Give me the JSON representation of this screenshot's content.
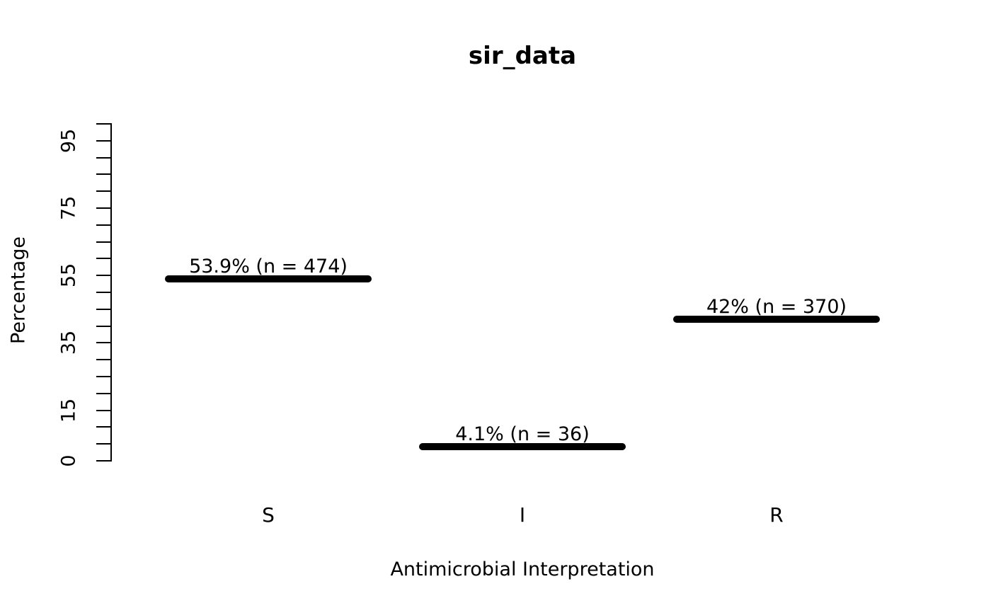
{
  "page": {
    "background": "#ffffff",
    "text_color": "#000000"
  },
  "chart_data": {
    "type": "bar",
    "title": "sir_data",
    "xlabel": "Antimicrobial Interpretation",
    "ylabel": "Percentage",
    "categories": [
      "S",
      "I",
      "R"
    ],
    "values": [
      53.9,
      4.1,
      42
    ],
    "counts": [
      474,
      36,
      370
    ],
    "point_labels": [
      "53.9% (n = 474)",
      "4.1% (n = 36)",
      "42% (n = 370)"
    ],
    "ylim": [
      0,
      100
    ],
    "y_labeled_ticks": [
      0,
      15,
      35,
      55,
      75,
      95
    ],
    "y_minor_tick_step": 5,
    "grid": false,
    "legend": "none",
    "bar_color": "#000000",
    "bar_style": "thick-horizontal-segment"
  }
}
